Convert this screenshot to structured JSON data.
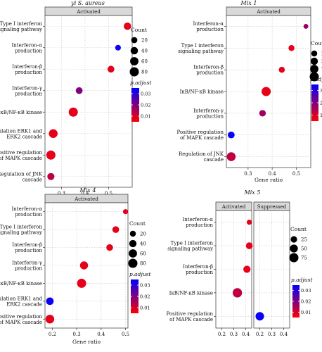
{
  "chart_data": [
    {
      "type": "scatter",
      "title": "yi S. aureus",
      "facets": [
        "Activated"
      ],
      "categories": [
        "Type I interferon signaling pathway",
        "Interferon-α production",
        "Interferon-β production",
        "Interferon-γ production",
        "IκB/NF-κB kinase",
        "Regulation ERK1 and ERK2 cascade",
        "Positive regulation of MAPK cascade",
        "Regulation of JNK cascade"
      ],
      "xlabel": "Gene ratio",
      "xticks": [
        0.3,
        0.4,
        0.5
      ],
      "xlim": [
        0.23,
        0.6
      ],
      "points": [
        {
          "category": "Type I interferon signaling pathway",
          "x": 0.58,
          "count": 40,
          "p_adjust": 0.004
        },
        {
          "category": "Interferon-α production",
          "x": 0.54,
          "count": 15,
          "p_adjust": 0.038
        },
        {
          "category": "Interferon-β production",
          "x": 0.51,
          "count": 30,
          "p_adjust": 0.004
        },
        {
          "category": "Interferon-γ production",
          "x": 0.375,
          "count": 30,
          "p_adjust": 0.02
        },
        {
          "category": "IκB/NF-κB kinase",
          "x": 0.35,
          "count": 80,
          "p_adjust": 0.004
        },
        {
          "category": "Regulation ERK1 and ERK2 cascade",
          "x": 0.265,
          "count": 70,
          "p_adjust": 0.004
        },
        {
          "category": "Positive regulation of MAPK cascade",
          "x": 0.255,
          "count": 80,
          "p_adjust": 0.004
        },
        {
          "category": "Regulation of JNK cascade",
          "x": 0.255,
          "count": 35,
          "p_adjust": 0.01
        }
      ],
      "size_legend": {
        "title": "Count",
        "values": [
          20,
          40,
          60,
          80
        ]
      },
      "color_legend": {
        "title": "p.adjust",
        "ticks": [
          "0.03",
          "0.02",
          "0.01"
        ],
        "min": 0.0,
        "max": 0.04
      }
    },
    {
      "type": "scatter",
      "title": "Mix 1",
      "facets": [
        "Activated"
      ],
      "categories": [
        "Interferon-α production",
        "Type I interferon signaling pathway",
        "Interferon-β production",
        "IκB/NF-κB kinase",
        "Interferon-γ production",
        "Positive regulation of MAPK cascade",
        "Regulation of JNK cascade"
      ],
      "xlabel": "Gene ratio",
      "xticks": [
        0.3,
        0.4,
        0.5
      ],
      "xlim": [
        0.21,
        0.56
      ],
      "points": [
        {
          "category": "Interferon-α production",
          "x": 0.54,
          "count": 10,
          "p_adjust": 0.00012
        },
        {
          "category": "Type I interferon signaling pathway",
          "x": 0.48,
          "count": 25,
          "p_adjust": 3e-05
        },
        {
          "category": "Interferon-β production",
          "x": 0.44,
          "count": 25,
          "p_adjust": 3e-05
        },
        {
          "category": "IκB/NF-κB kinase",
          "x": 0.375,
          "count": 100,
          "p_adjust": 3e-05
        },
        {
          "category": "Interferon-γ production",
          "x": 0.36,
          "count": 35,
          "p_adjust": 0.00012
        },
        {
          "category": "Positive regulation of MAPK cascade",
          "x": 0.23,
          "count": 40,
          "p_adjust": 0.00031
        },
        {
          "category": "Regulation of JNK cascade",
          "x": 0.23,
          "count": 90,
          "p_adjust": 8e-05
        }
      ],
      "size_legend": {
        "title": "Count",
        "values": [
          25,
          50,
          75,
          100
        ]
      },
      "color_legend": {
        "title": "p.adjust",
        "ticks": [
          "3e−04",
          "2e−04",
          "1e−04"
        ],
        "min": 0.0,
        "max": 0.00032
      }
    },
    {
      "type": "scatter",
      "title": "Mix 4",
      "facets": [
        "Activated"
      ],
      "categories": [
        "Interferon-α production",
        "Type I interferon signaling pathway",
        "Interferon-β production",
        "Interferon-γ production",
        "IκB/NF-κB kinase",
        "Regulation ERK1 and ERK2 cascade",
        "Positive regulation of MAPK cascade"
      ],
      "xlabel": "Gene ratio",
      "xticks": [
        0.2,
        0.3,
        0.4,
        0.5
      ],
      "xlim": [
        0.17,
        0.51
      ],
      "points": [
        {
          "category": "Interferon-α production",
          "x": 0.5,
          "count": 10,
          "p_adjust": 0.004
        },
        {
          "category": "Type I interferon signaling pathway",
          "x": 0.46,
          "count": 30,
          "p_adjust": 0.004
        },
        {
          "category": "Interferon-β production",
          "x": 0.435,
          "count": 30,
          "p_adjust": 0.004
        },
        {
          "category": "Interferon-γ production",
          "x": 0.33,
          "count": 55,
          "p_adjust": 0.004
        },
        {
          "category": "IκB/NF-κB kinase",
          "x": 0.32,
          "count": 80,
          "p_adjust": 0.004
        },
        {
          "category": "Regulation ERK1 and ERK2 cascade",
          "x": 0.19,
          "count": 45,
          "p_adjust": 0.038
        },
        {
          "category": "Positive regulation of MAPK cascade",
          "x": 0.19,
          "count": 70,
          "p_adjust": 0.004
        }
      ],
      "size_legend": {
        "title": "Count",
        "values": [
          20,
          40,
          60,
          80
        ]
      },
      "color_legend": {
        "title": "p.adjust",
        "ticks": [
          "0.03",
          "0.02",
          "0.01"
        ],
        "min": 0.0,
        "max": 0.04
      }
    },
    {
      "type": "scatter",
      "title": "Mix 5",
      "facets": [
        "Activated",
        "Suppressed"
      ],
      "categories": [
        "Interferon-α production",
        "Type I interferon signaling pathway",
        "Interferon-β production",
        "IκB/NF-κB kinase",
        "Positive regulation of MAPK cascade"
      ],
      "xlabel": "",
      "xticks": [
        0.2,
        0.3,
        0.4
      ],
      "xlim": [
        0.15,
        0.45
      ],
      "points": [
        {
          "facet": "Activated",
          "category": "Interferon-α production",
          "x": 0.43,
          "count": 10,
          "p_adjust": 0.003
        },
        {
          "facet": "Activated",
          "category": "Type I interferon signaling pathway",
          "x": 0.43,
          "count": 30,
          "p_adjust": 0.003
        },
        {
          "facet": "Activated",
          "category": "Interferon-β production",
          "x": 0.41,
          "count": 35,
          "p_adjust": 0.003
        },
        {
          "facet": "Activated",
          "category": "IκB/NF-κB kinase",
          "x": 0.33,
          "count": 80,
          "p_adjust": 0.008
        },
        {
          "facet": "Suppressed",
          "category": "Positive regulation of MAPK cascade",
          "x": 0.2,
          "count": 60,
          "p_adjust": 0.031
        }
      ],
      "size_legend": {
        "title": "Count",
        "values": [
          25,
          50,
          75
        ]
      },
      "color_legend": {
        "title": "p.adjust",
        "ticks": [
          "0.03",
          "0.02",
          "0.01"
        ],
        "min": 0.0,
        "max": 0.032
      }
    }
  ],
  "colors": {
    "low_p": "#ff0000",
    "high_p": "#0000ff",
    "panel_bg": "#ffffff",
    "strip_bg": "#d9d9d9",
    "grid": "#c8c8c8"
  }
}
